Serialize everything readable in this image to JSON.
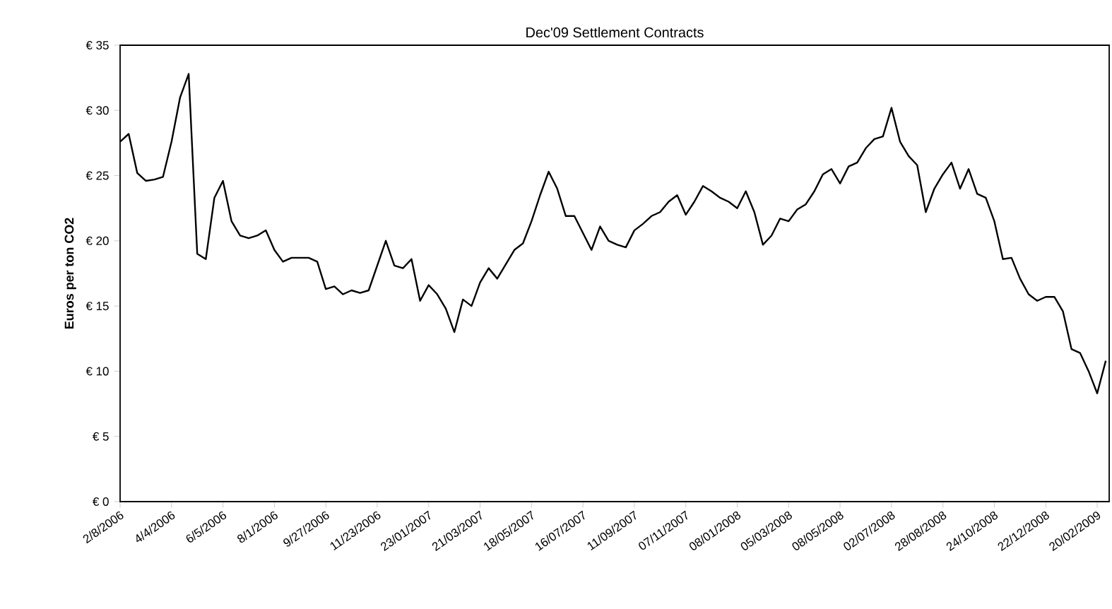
{
  "chart_data": {
    "type": "line",
    "title": "Dec'09 Settlement Contracts",
    "ylabel": "Euros per ton CO2",
    "categories": [
      "2/8/2006",
      null,
      null,
      null,
      null,
      null,
      "4/4/2006",
      null,
      null,
      null,
      null,
      null,
      "6/5/2006",
      null,
      null,
      null,
      null,
      null,
      "8/1/2006",
      null,
      null,
      null,
      null,
      null,
      "9/27/2006",
      null,
      null,
      null,
      null,
      null,
      "11/23/2006",
      null,
      null,
      null,
      null,
      null,
      "23/01/2007",
      null,
      null,
      null,
      null,
      null,
      "21/03/2007",
      null,
      null,
      null,
      null,
      null,
      "18/05/2007",
      null,
      null,
      null,
      null,
      null,
      "16/07/2007",
      null,
      null,
      null,
      null,
      null,
      "11/09/2007",
      null,
      null,
      null,
      null,
      null,
      "07/11/2007",
      null,
      null,
      null,
      null,
      null,
      "08/01/2008",
      null,
      null,
      null,
      null,
      null,
      "05/03/2008",
      null,
      null,
      null,
      null,
      null,
      "08/05/2008",
      null,
      null,
      null,
      null,
      null,
      "02/07/2008",
      null,
      null,
      null,
      null,
      null,
      "28/08/2008",
      null,
      null,
      null,
      null,
      null,
      "24/10/2008",
      null,
      null,
      null,
      null,
      null,
      "22/12/2008",
      null,
      null,
      null,
      null,
      null,
      "20/02/2009",
      null
    ],
    "series": [
      {
        "color": "#000000",
        "values": [
          27.6,
          28.2,
          25.2,
          24.6,
          24.7,
          24.9,
          27.6,
          31.0,
          32.8,
          19.0,
          18.6,
          23.3,
          24.6,
          21.5,
          20.4,
          20.2,
          20.4,
          20.8,
          19.3,
          18.4,
          18.7,
          18.7,
          18.7,
          18.4,
          16.3,
          16.5,
          15.9,
          16.2,
          16.0,
          16.2,
          18.1,
          20.0,
          18.1,
          17.9,
          18.6,
          15.4,
          16.6,
          15.9,
          14.8,
          13.0,
          15.5,
          15.0,
          16.8,
          17.9,
          17.1,
          18.2,
          19.3,
          19.8,
          21.5,
          23.5,
          25.3,
          24.0,
          21.9,
          21.9,
          20.6,
          19.3,
          21.1,
          20.0,
          19.7,
          19.5,
          20.8,
          21.3,
          21.9,
          22.2,
          23.0,
          23.5,
          22.0,
          23.0,
          24.2,
          23.8,
          23.3,
          23.0,
          22.5,
          23.8,
          22.2,
          19.7,
          20.4,
          21.7,
          21.5,
          22.4,
          22.8,
          23.8,
          25.1,
          25.5,
          24.4,
          25.7,
          26.0,
          27.1,
          27.8,
          28.0,
          30.2,
          27.6,
          26.5,
          25.8,
          22.2,
          24.0,
          25.1,
          26.0,
          24.0,
          25.5,
          23.6,
          23.3,
          21.5,
          18.6,
          18.7,
          17.1,
          15.9,
          15.4,
          15.7,
          15.7,
          14.6,
          11.7,
          11.4,
          10.0,
          8.3,
          10.8
        ]
      }
    ],
    "ylim": [
      0,
      35
    ],
    "yticks": [
      {
        "value": 0,
        "label": "€ 0"
      },
      {
        "value": 5,
        "label": "€ 5"
      },
      {
        "value": 10,
        "label": "€ 10"
      },
      {
        "value": 15,
        "label": "€ 15"
      },
      {
        "value": 20,
        "label": "€ 20"
      },
      {
        "value": 25,
        "label": "€ 25"
      },
      {
        "value": 30,
        "label": "€ 30"
      },
      {
        "value": 35,
        "label": "€ 35"
      }
    ],
    "grid": false,
    "legend": false,
    "marker": "none",
    "line_style": "solid"
  }
}
